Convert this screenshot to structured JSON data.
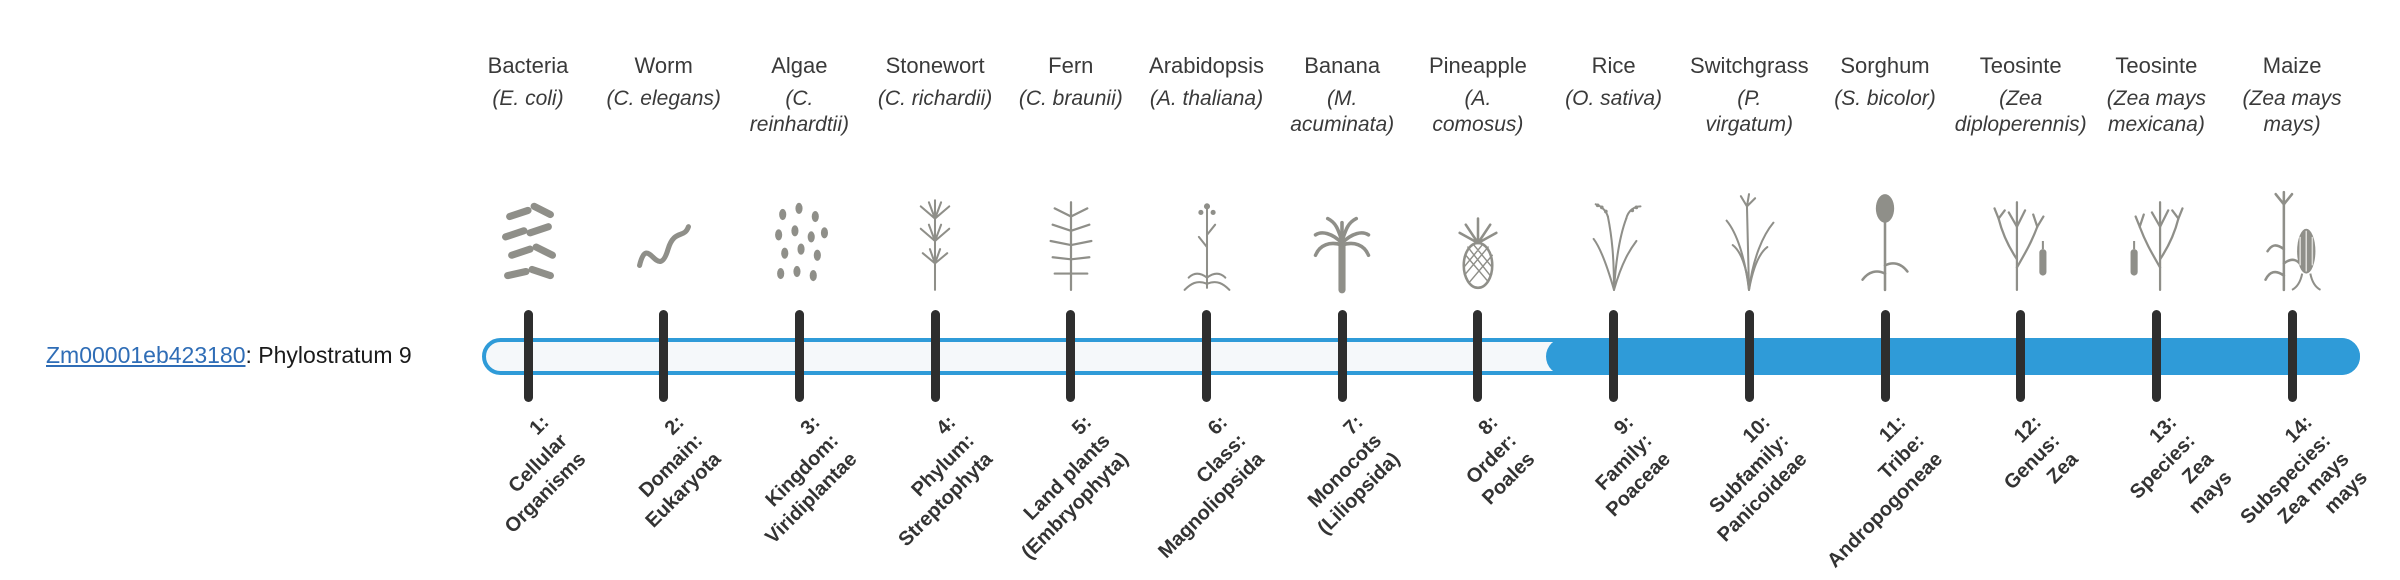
{
  "colors": {
    "bar_fill": "#2f9bd8",
    "bar_outline": "#2f9bd8",
    "bar_empty": "#f5f8fa",
    "tick": "#2e2e2e",
    "link": "#2f6db6",
    "text": "#3a3a3a",
    "icon": "#8f8f89"
  },
  "gene": {
    "id": "Zm00001eb423180",
    "label_suffix": ": Phylostratum 9",
    "phylostratum": 9
  },
  "strata": [
    {
      "num": 1,
      "organism": "Bacteria",
      "scientific": "(E. coli)",
      "icon": "bacteria-icon",
      "axis_label": "1:\nCellular\nOrganisms"
    },
    {
      "num": 2,
      "organism": "Worm",
      "scientific": "(C. elegans)",
      "icon": "worm-icon",
      "axis_label": "2:\nDomain:\nEukaryota"
    },
    {
      "num": 3,
      "organism": "Algae",
      "scientific": "(C.\nreinhardtii)",
      "icon": "algae-icon",
      "axis_label": "3:\nKingdom:\nViridiplantae"
    },
    {
      "num": 4,
      "organism": "Stonewort",
      "scientific": "(C. richardii)",
      "icon": "stonewort-icon",
      "axis_label": "4:\nPhylum:\nStreptophyta"
    },
    {
      "num": 5,
      "organism": "Fern",
      "scientific": "(C. braunii)",
      "icon": "fern-icon",
      "axis_label": "5:\nLand plants\n(Embryophyta)"
    },
    {
      "num": 6,
      "organism": "Arabidopsis",
      "scientific": "(A. thaliana)",
      "icon": "arabidopsis-icon",
      "axis_label": "6:\nClass:\nMagnoliopsida"
    },
    {
      "num": 7,
      "organism": "Banana",
      "scientific": "(M.\nacuminata)",
      "icon": "banana-icon",
      "axis_label": "7:\nMonocots\n(Liliopsida)"
    },
    {
      "num": 8,
      "organism": "Pineapple",
      "scientific": "(A.\ncomosus)",
      "icon": "pineapple-icon",
      "axis_label": "8:\nOrder:\nPoales"
    },
    {
      "num": 9,
      "organism": "Rice",
      "scientific": "(O. sativa)",
      "icon": "rice-icon",
      "axis_label": "9:\nFamily:\nPoaceae"
    },
    {
      "num": 10,
      "organism": "Switchgrass",
      "scientific": "(P.\nvirgatum)",
      "icon": "switchgrass-icon",
      "axis_label": "10:\nSubfamily:\nPanicoideae"
    },
    {
      "num": 11,
      "organism": "Sorghum",
      "scientific": "(S. bicolor)",
      "icon": "sorghum-icon",
      "axis_label": "11:\nTribe:\nAndropogoneae"
    },
    {
      "num": 12,
      "organism": "Teosinte",
      "scientific": "(Zea\ndiploperennis)",
      "icon": "teosinte-icon",
      "axis_label": "12:\nGenus:\nZea"
    },
    {
      "num": 13,
      "organism": "Teosinte",
      "scientific": "(Zea mays\nmexicana)",
      "icon": "teosinte-mexicana-icon",
      "axis_label": "13:\nSpecies:\nZea\nmays"
    },
    {
      "num": 14,
      "organism": "Maize",
      "scientific": "(Zea mays\nmays)",
      "icon": "maize-icon",
      "axis_label": "14:\nSubspecies:\nZea mays\nmays"
    }
  ]
}
